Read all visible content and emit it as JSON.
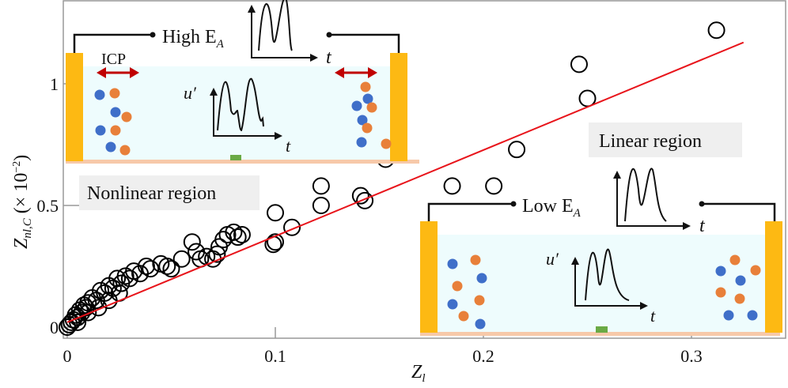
{
  "chart_data": {
    "type": "scatter",
    "title": "",
    "xlabel": "Z",
    "xlabel_sub": "l",
    "ylabel": "Z",
    "ylabel_sub": "nl,C",
    "ylabel_suffix": " (× 10",
    "ylabel_exp": "−2",
    "ylabel_close": ")",
    "xlim": [
      -0.002,
      0.344
    ],
    "ylim": [
      -0.04,
      1.34
    ],
    "xticks": [
      {
        "value": 0,
        "label": "0"
      },
      {
        "value": 0.1,
        "label": "0.1"
      },
      {
        "value": 0.2,
        "label": "0.2"
      },
      {
        "value": 0.3,
        "label": "0.3"
      }
    ],
    "yticks": [
      {
        "value": 0,
        "label": "0"
      },
      {
        "value": 0.5,
        "label": "0.5"
      },
      {
        "value": 1,
        "label": "1"
      }
    ],
    "grid": false,
    "marker": "open-circle",
    "marker_color": "#000000",
    "fit_color": "#e8141b",
    "fit_line": {
      "x": [
        0,
        0.325
      ],
      "y": [
        0.02,
        1.17
      ]
    },
    "points": [
      [
        0,
        0
      ],
      [
        0.001,
        0.01
      ],
      [
        0.002,
        0.02
      ],
      [
        0.003,
        0.03
      ],
      [
        0.004,
        0.05
      ],
      [
        0.005,
        0.04
      ],
      [
        0.005,
        0.02
      ],
      [
        0.006,
        0.07
      ],
      [
        0.007,
        0.06
      ],
      [
        0.008,
        0.09
      ],
      [
        0.009,
        0.08
      ],
      [
        0.01,
        0.1
      ],
      [
        0.01,
        0.06
      ],
      [
        0.012,
        0.12
      ],
      [
        0.014,
        0.11
      ],
      [
        0.015,
        0.08
      ],
      [
        0.016,
        0.15
      ],
      [
        0.018,
        0.14
      ],
      [
        0.02,
        0.17
      ],
      [
        0.02,
        0.11
      ],
      [
        0.022,
        0.16
      ],
      [
        0.024,
        0.2
      ],
      [
        0.025,
        0.14
      ],
      [
        0.026,
        0.18
      ],
      [
        0.028,
        0.21
      ],
      [
        0.03,
        0.2
      ],
      [
        0.032,
        0.23
      ],
      [
        0.035,
        0.22
      ],
      [
        0.038,
        0.25
      ],
      [
        0.04,
        0.24
      ],
      [
        0.045,
        0.26
      ],
      [
        0.048,
        0.25
      ],
      [
        0.05,
        0.24
      ],
      [
        0.055,
        0.28
      ],
      [
        0.06,
        0.35
      ],
      [
        0.062,
        0.31
      ],
      [
        0.064,
        0.28
      ],
      [
        0.067,
        0.29
      ],
      [
        0.07,
        0.28
      ],
      [
        0.072,
        0.3
      ],
      [
        0.073,
        0.33
      ],
      [
        0.075,
        0.36
      ],
      [
        0.077,
        0.38
      ],
      [
        0.08,
        0.39
      ],
      [
        0.082,
        0.37
      ],
      [
        0.084,
        0.38
      ],
      [
        0.099,
        0.34
      ],
      [
        0.1,
        0.35
      ],
      [
        0.1,
        0.47
      ],
      [
        0.108,
        0.41
      ],
      [
        0.122,
        0.5
      ],
      [
        0.122,
        0.58
      ],
      [
        0.141,
        0.54
      ],
      [
        0.143,
        0.52
      ],
      [
        0.153,
        0.69
      ],
      [
        0.185,
        0.58
      ],
      [
        0.205,
        0.58
      ],
      [
        0.216,
        0.73
      ],
      [
        0.246,
        1.08
      ],
      [
        0.25,
        0.94
      ],
      [
        0.312,
        1.22
      ]
    ]
  },
  "annotations": {
    "nonlinear_region": "Nonlinear region",
    "linear_region": "Linear region",
    "high_ea": "High E",
    "low_ea": "Low E",
    "ea_sub": "A",
    "icp": "ICP",
    "u_prime": "u′",
    "t": "t"
  },
  "colors": {
    "electrode": "#fdb913",
    "fluid": "#eefcfd",
    "base": "#f7c9a9",
    "blue_particle": "#3f6fc9",
    "orange_particle": "#e8803a",
    "icp_arrow": "#c00000",
    "sensor": "#6aaa45",
    "label_box": "#efefef"
  }
}
